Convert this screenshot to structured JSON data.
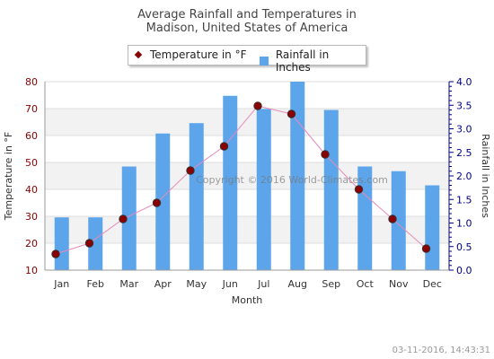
{
  "title_line1": "Average Rainfall and Temperatures in",
  "title_line2": "Madison, United States of America",
  "legend": {
    "temperature": "Temperature in °F",
    "rainfall": "Rainfall in Inches"
  },
  "watermark": "Copyright © 2016 World-Climates.com",
  "timestamp": "03-11-2016, 14:43:31",
  "colors": {
    "bar": "#5da5ea",
    "line": "#e68ab8",
    "marker": "#8b0000",
    "left_axis_text": "#8b0000",
    "right_axis_text": "#00008b",
    "band": "#f2f2f2"
  },
  "chart_data": {
    "type": "bar",
    "combo": "bar+line",
    "xlabel": "Month",
    "categories": [
      "Jan",
      "Feb",
      "Mar",
      "Apr",
      "May",
      "Jun",
      "Jul",
      "Aug",
      "Sep",
      "Oct",
      "Nov",
      "Dec"
    ],
    "grid": true,
    "legend_position": "top-center",
    "y_left": {
      "label": "Temperature in °F",
      "range": [
        10,
        80
      ],
      "ticks": [
        "10",
        "20",
        "30",
        "40",
        "50",
        "60",
        "70",
        "80"
      ]
    },
    "y_right": {
      "label": "Rainfall in Inches",
      "range": [
        0,
        4
      ],
      "ticks": [
        "0.0",
        "0.5",
        "1.0",
        "1.5",
        "2.0",
        "2.5",
        "3.0",
        "3.5",
        "4.0"
      ]
    },
    "series": [
      {
        "name": "Rainfall in Inches",
        "type": "bar",
        "axis": "right",
        "values": [
          1.12,
          1.12,
          2.2,
          2.9,
          3.12,
          3.7,
          3.42,
          4.0,
          3.4,
          2.2,
          2.1,
          1.8
        ]
      },
      {
        "name": "Temperature in °F",
        "type": "line",
        "axis": "left",
        "values": [
          16,
          20,
          29,
          35,
          47,
          56,
          71,
          68,
          53,
          40,
          29,
          18
        ]
      }
    ]
  }
}
